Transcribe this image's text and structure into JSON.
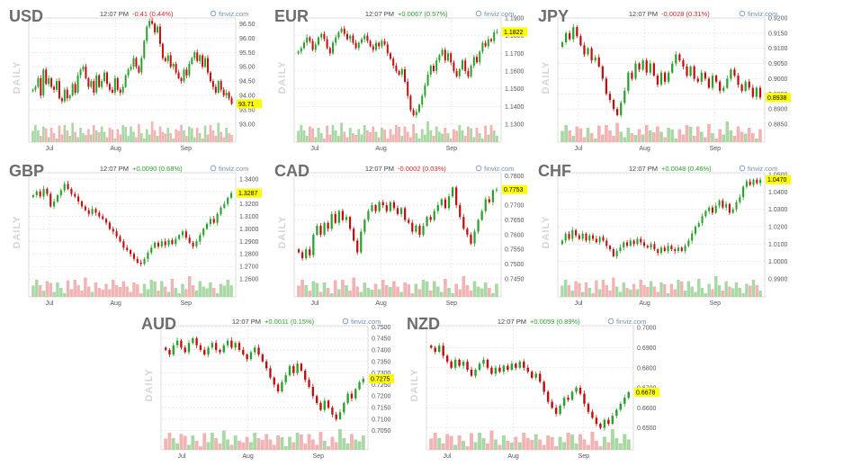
{
  "chart_data": [
    {
      "type": "candlestick",
      "symbol": "USD",
      "label": "DAILY",
      "time": "12:07 PM",
      "change": "-0.41 (0.44%)",
      "direction": "down",
      "source": "finviz.com",
      "ticks": [
        "96.50",
        "96.00",
        "95.50",
        "95.00",
        "94.50",
        "94.00",
        "93.50",
        "93.00"
      ],
      "ylim": [
        93.0,
        96.7
      ],
      "last": "93.71",
      "months": [
        "Jul",
        "Aug",
        "Sep"
      ],
      "close": [
        94.2,
        94.3,
        94.6,
        94.0,
        94.9,
        94.4,
        94.6,
        94.3,
        94.2,
        94.5,
        93.9,
        93.8,
        94.2,
        93.9,
        94.0,
        94.4,
        94.1,
        94.7,
        94.9,
        95.0,
        94.6,
        94.3,
        94.5,
        94.1,
        94.7,
        94.3,
        94.5,
        94.8,
        94.4,
        94.2,
        94.1,
        94.6,
        94.2,
        94.1,
        94.3,
        94.7,
        94.9,
        95.0,
        95.3,
        95.0,
        94.8,
        95.3,
        95.9,
        96.4,
        96.6,
        96.5,
        96.2,
        96.4,
        95.8,
        95.3,
        95.2,
        95.4,
        95.0,
        95.1,
        94.8,
        94.6,
        94.5,
        94.9,
        94.7,
        95.1,
        95.3,
        95.5,
        95.2,
        95.4,
        95.0,
        95.3,
        94.8,
        94.5,
        94.3,
        94.1,
        94.5,
        94.2,
        94.0,
        94.1,
        93.9,
        93.71
      ]
    },
    {
      "type": "candlestick",
      "symbol": "EUR",
      "label": "DAILY",
      "time": "12:07 PM",
      "change": "+0.0067 (0.57%)",
      "direction": "up",
      "source": "finviz.com",
      "ticks": [
        "1.1900",
        "1.1800",
        "1.1700",
        "1.1600",
        "1.1500",
        "1.1400",
        "1.1300"
      ],
      "ylim": [
        1.13,
        1.19
      ],
      "last": "1.1822",
      "months": [
        "Jul",
        "Aug",
        "Sep"
      ],
      "close": [
        1.171,
        1.173,
        1.176,
        1.179,
        1.177,
        1.172,
        1.175,
        1.179,
        1.181,
        1.178,
        1.173,
        1.17,
        1.176,
        1.179,
        1.182,
        1.184,
        1.181,
        1.178,
        1.18,
        1.176,
        1.173,
        1.176,
        1.178,
        1.18,
        1.177,
        1.174,
        1.172,
        1.176,
        1.174,
        1.177,
        1.175,
        1.17,
        1.167,
        1.163,
        1.16,
        1.158,
        1.161,
        1.154,
        1.146,
        1.138,
        1.135,
        1.137,
        1.141,
        1.146,
        1.152,
        1.158,
        1.163,
        1.16,
        1.166,
        1.169,
        1.172,
        1.166,
        1.17,
        1.165,
        1.16,
        1.157,
        1.161,
        1.166,
        1.16,
        1.157,
        1.163,
        1.168,
        1.165,
        1.171,
        1.176,
        1.174,
        1.178,
        1.177,
        1.182,
        1.1822
      ]
    },
    {
      "type": "candlestick",
      "symbol": "JPY",
      "label": "DAILY",
      "time": "12:07 PM",
      "change": "-0.0028 (0.31%)",
      "direction": "down",
      "source": "finviz.com",
      "ticks": [
        "0.9200",
        "0.9150",
        "0.9100",
        "0.9050",
        "0.9000",
        "0.8950",
        "0.8900",
        "0.8850"
      ],
      "ylim": [
        0.885,
        0.92
      ],
      "last": "0.8938",
      "months": [
        "Jul",
        "Aug",
        "Sep"
      ],
      "close": [
        0.912,
        0.915,
        0.913,
        0.917,
        0.914,
        0.911,
        0.908,
        0.91,
        0.906,
        0.907,
        0.904,
        0.9,
        0.895,
        0.893,
        0.89,
        0.888,
        0.892,
        0.896,
        0.902,
        0.9,
        0.905,
        0.903,
        0.906,
        0.902,
        0.905,
        0.901,
        0.898,
        0.902,
        0.899,
        0.902,
        0.905,
        0.908,
        0.906,
        0.904,
        0.901,
        0.904,
        0.9,
        0.899,
        0.902,
        0.9,
        0.897,
        0.901,
        0.899,
        0.896,
        0.897,
        0.9,
        0.903,
        0.901,
        0.898,
        0.896,
        0.899,
        0.897,
        0.894,
        0.897,
        0.8938
      ]
    },
    {
      "type": "candlestick",
      "symbol": "GBP",
      "label": "DAILY",
      "time": "12:07 PM",
      "change": "+0.0090 (0.68%)",
      "direction": "up",
      "source": "finviz.com",
      "ticks": [
        "1.3400",
        "1.3300",
        "1.3200",
        "1.3100",
        "1.3000",
        "1.2900",
        "1.2800",
        "1.2700",
        "1.2600"
      ],
      "ylim": [
        1.26,
        1.345
      ],
      "last": "1.3287",
      "months": [
        "Jul",
        "Aug",
        "Sep"
      ],
      "close": [
        1.327,
        1.33,
        1.326,
        1.332,
        1.328,
        1.318,
        1.322,
        1.327,
        1.331,
        1.336,
        1.332,
        1.328,
        1.326,
        1.322,
        1.318,
        1.315,
        1.312,
        1.316,
        1.313,
        1.31,
        1.308,
        1.305,
        1.3,
        1.298,
        1.294,
        1.29,
        1.285,
        1.283,
        1.28,
        1.276,
        1.273,
        1.272,
        1.276,
        1.281,
        1.285,
        1.289,
        1.286,
        1.29,
        1.287,
        1.291,
        1.288,
        1.292,
        1.295,
        1.298,
        1.293,
        1.289,
        1.286,
        1.29,
        1.295,
        1.3,
        1.304,
        1.308,
        1.305,
        1.312,
        1.317,
        1.32,
        1.325,
        1.3287
      ]
    },
    {
      "type": "candlestick",
      "symbol": "CAD",
      "label": "DAILY",
      "time": "12:07 PM",
      "change": "-0.0002 (0.03%)",
      "direction": "down",
      "source": "finviz.com",
      "ticks": [
        "0.7800",
        "0.7750",
        "0.7700",
        "0.7650",
        "0.7600",
        "0.7550",
        "0.7500",
        "0.7450"
      ],
      "ylim": [
        0.745,
        0.781
      ],
      "last": "0.7753",
      "months": [
        "Jul",
        "Aug",
        "Sep"
      ],
      "close": [
        0.754,
        0.752,
        0.755,
        0.753,
        0.76,
        0.763,
        0.76,
        0.764,
        0.762,
        0.767,
        0.764,
        0.768,
        0.765,
        0.766,
        0.762,
        0.758,
        0.754,
        0.761,
        0.765,
        0.768,
        0.77,
        0.768,
        0.771,
        0.77,
        0.768,
        0.771,
        0.769,
        0.767,
        0.769,
        0.765,
        0.764,
        0.761,
        0.763,
        0.76,
        0.763,
        0.766,
        0.765,
        0.768,
        0.77,
        0.772,
        0.769,
        0.773,
        0.776,
        0.77,
        0.766,
        0.762,
        0.76,
        0.757,
        0.761,
        0.765,
        0.768,
        0.772,
        0.771,
        0.775,
        0.7753
      ]
    },
    {
      "type": "candlestick",
      "symbol": "CHF",
      "label": "DAILY",
      "time": "12:07 PM",
      "change": "+0.0048 (0.46%)",
      "direction": "up",
      "source": "finviz.com",
      "ticks": [
        "1.0500",
        "1.0400",
        "1.0300",
        "1.0200",
        "1.0100",
        "1.0000",
        "0.9900"
      ],
      "ylim": [
        0.99,
        1.051
      ],
      "last": "1.0470",
      "months": [
        "Jul",
        "Aug",
        "Sep"
      ],
      "close": [
        1.012,
        1.016,
        1.013,
        1.018,
        1.015,
        1.013,
        1.016,
        1.012,
        1.015,
        1.013,
        1.011,
        1.014,
        1.012,
        1.009,
        1.007,
        1.003,
        1.006,
        1.008,
        1.011,
        1.009,
        1.012,
        1.01,
        1.013,
        1.011,
        1.009,
        1.008,
        1.01,
        1.007,
        1.005,
        1.008,
        1.006,
        1.009,
        1.007,
        1.006,
        1.008,
        1.006,
        1.009,
        1.012,
        1.016,
        1.02,
        1.022,
        1.026,
        1.029,
        1.031,
        1.028,
        1.032,
        1.035,
        1.031,
        1.033,
        1.028,
        1.03,
        1.034,
        1.037,
        1.043,
        1.046,
        1.044,
        1.047,
        1.045,
        1.047
      ]
    },
    {
      "type": "candlestick",
      "symbol": "AUD",
      "label": "DAILY",
      "time": "12:07 PM",
      "change": "+0.0011 (0.15%)",
      "direction": "up",
      "source": "finviz.com",
      "ticks": [
        "0.7500",
        "0.7450",
        "0.7400",
        "0.7350",
        "0.7300",
        "0.7250",
        "0.7200",
        "0.7150",
        "0.7100",
        "0.7050"
      ],
      "ylim": [
        0.7045,
        0.7505
      ],
      "last": "0.7275",
      "months": [
        "Jul",
        "Aug",
        "Sep"
      ],
      "close": [
        0.74,
        0.738,
        0.742,
        0.744,
        0.741,
        0.739,
        0.743,
        0.745,
        0.742,
        0.74,
        0.738,
        0.741,
        0.743,
        0.74,
        0.739,
        0.742,
        0.744,
        0.741,
        0.743,
        0.74,
        0.738,
        0.736,
        0.739,
        0.741,
        0.738,
        0.735,
        0.732,
        0.728,
        0.725,
        0.722,
        0.726,
        0.729,
        0.733,
        0.73,
        0.734,
        0.731,
        0.727,
        0.724,
        0.72,
        0.717,
        0.714,
        0.718,
        0.715,
        0.712,
        0.71,
        0.713,
        0.717,
        0.721,
        0.719,
        0.723,
        0.726,
        0.7275
      ]
    },
    {
      "type": "candlestick",
      "symbol": "NZD",
      "label": "DAILY",
      "time": "12:07 PM",
      "change": "+0.0059 (0.89%)",
      "direction": "up",
      "source": "finviz.com",
      "ticks": [
        "0.7000",
        "0.6900",
        "0.6800",
        "0.6700",
        "0.6600",
        "0.6500"
      ],
      "ylim": [
        0.648,
        0.701
      ],
      "last": "0.6678",
      "months": [
        "Jul",
        "Aug",
        "Sep"
      ],
      "close": [
        0.69,
        0.688,
        0.691,
        0.686,
        0.683,
        0.68,
        0.684,
        0.681,
        0.683,
        0.679,
        0.676,
        0.679,
        0.682,
        0.684,
        0.68,
        0.677,
        0.68,
        0.678,
        0.681,
        0.679,
        0.682,
        0.68,
        0.683,
        0.68,
        0.678,
        0.675,
        0.677,
        0.673,
        0.668,
        0.663,
        0.66,
        0.657,
        0.661,
        0.665,
        0.664,
        0.668,
        0.67,
        0.667,
        0.662,
        0.658,
        0.655,
        0.652,
        0.65,
        0.654,
        0.652,
        0.656,
        0.659,
        0.662,
        0.665,
        0.6678
      ]
    }
  ]
}
